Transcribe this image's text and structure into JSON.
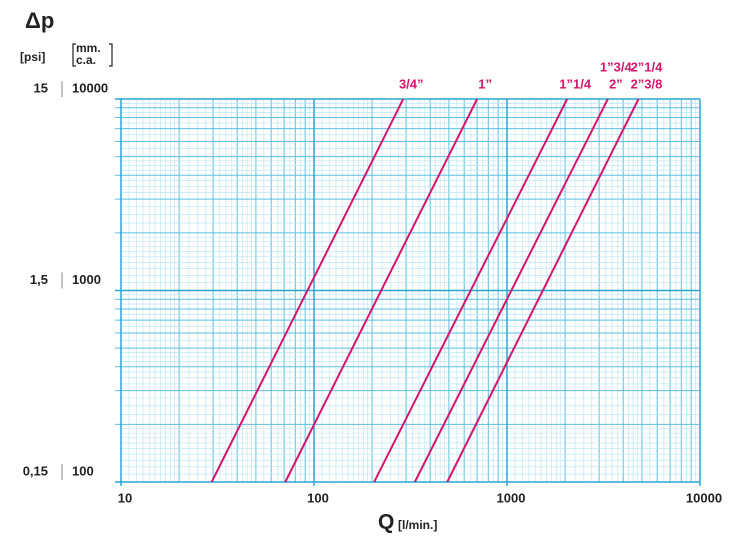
{
  "chart_data": {
    "type": "line",
    "title": "Δp",
    "y_unit_left": "[psi]",
    "y_unit_right": [
      "mm.",
      "c.a."
    ],
    "x_label": "Q",
    "x_unit": "[l/min.]",
    "log_x": true,
    "log_y": true,
    "grid": true,
    "xlim": [
      10,
      10000
    ],
    "xticks": [
      10,
      100,
      1000,
      10000
    ],
    "ylim": [
      100,
      10000
    ],
    "yticks": [
      100,
      1000,
      10000
    ],
    "y2lim": [
      0.15,
      15
    ],
    "y2ticks": [
      {
        "value": 0.15,
        "label": "0,15"
      },
      {
        "value": 1.5,
        "label": "1,5"
      },
      15
    ],
    "color": "#d4166c",
    "series": [
      {
        "name": "3/4”",
        "x": [
          29.5,
          290
        ],
        "values": [
          100,
          10000
        ]
      },
      {
        "name": "1”",
        "x": [
          71,
          700
        ],
        "values": [
          100,
          10000
        ]
      },
      {
        "name": "1”1/4",
        "x": [
          205,
          2050
        ],
        "values": [
          100,
          10000
        ]
      },
      {
        "name": [
          "1”3/4",
          "2”"
        ],
        "x": [
          333,
          3330
        ],
        "values": [
          100,
          10000
        ]
      },
      {
        "name": [
          "2”1/4",
          "2”3/8"
        ],
        "x": [
          490,
          4800
        ],
        "values": [
          100,
          10000
        ]
      }
    ]
  }
}
